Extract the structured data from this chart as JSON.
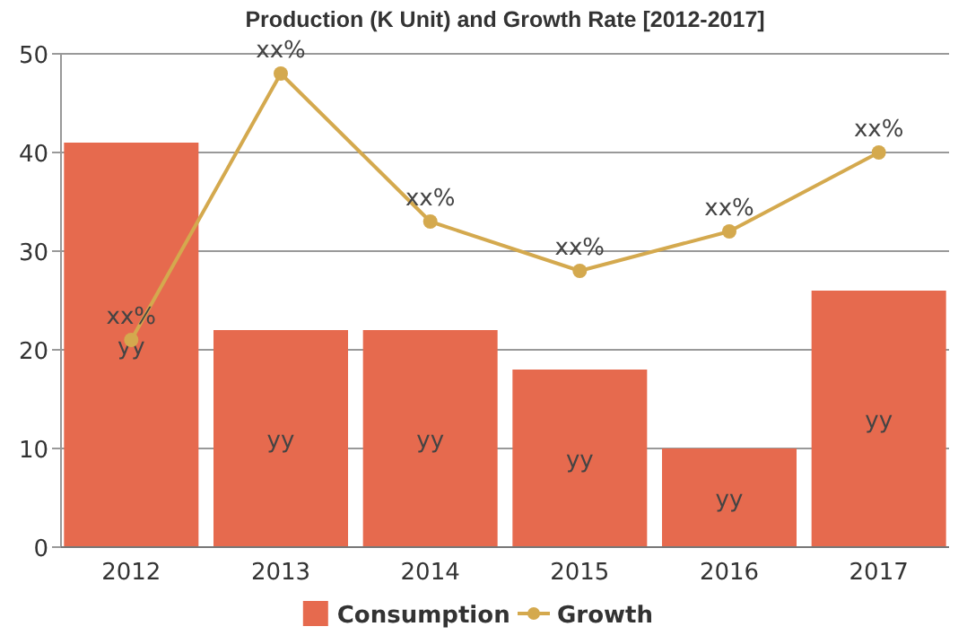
{
  "chart_data": {
    "type": "bar",
    "title": "Production (K Unit) and Growth Rate [2012-2017]",
    "categories": [
      "2012",
      "2013",
      "2014",
      "2015",
      "2016",
      "2017"
    ],
    "series": [
      {
        "name": "Consumption",
        "color": "#e66a4e",
        "values": [
          41,
          22,
          22,
          18,
          10,
          26
        ],
        "value_labels": [
          "yy",
          "yy",
          "yy",
          "yy",
          "yy",
          "yy"
        ]
      },
      {
        "name": "Growth",
        "type": "line",
        "color": "#d4a94e",
        "values": [
          21,
          48,
          33,
          28,
          32,
          40
        ],
        "value_labels": [
          "xx%",
          "xx%",
          "xx%",
          "xx%",
          "xx%",
          "xx%"
        ],
        "marker": "circle"
      }
    ],
    "ylim": [
      0,
      50
    ],
    "yticks": [
      0,
      10,
      20,
      30,
      40,
      50
    ],
    "grid": "y",
    "legend": "bottom"
  }
}
